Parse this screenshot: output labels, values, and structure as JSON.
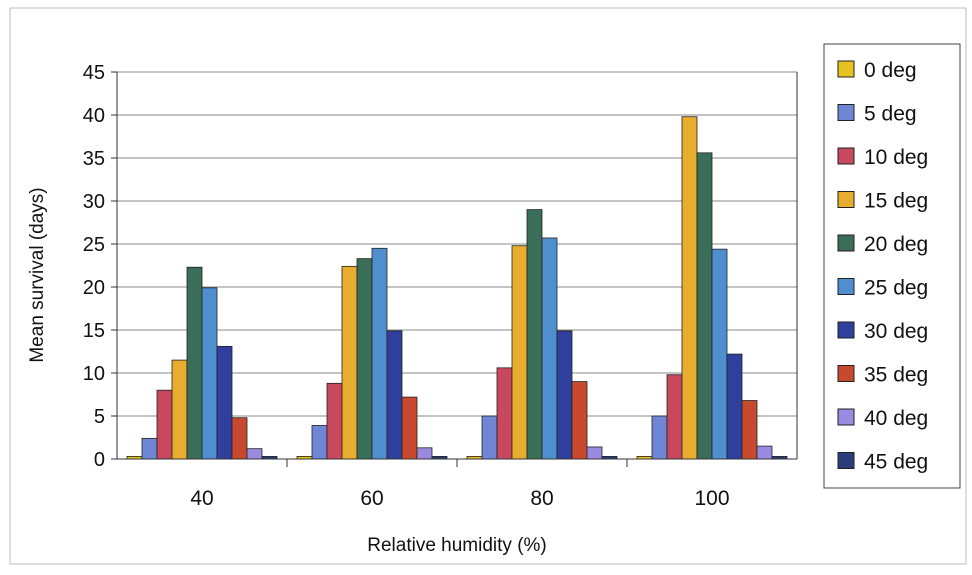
{
  "chart_data": {
    "type": "bar",
    "title": "",
    "xlabel": "Relative humidity (%)",
    "ylabel": "Mean survival (days)",
    "categories": [
      "40",
      "60",
      "80",
      "100"
    ],
    "ylim": [
      0,
      45
    ],
    "yticks": [
      "0",
      "5",
      "10",
      "15",
      "20",
      "25",
      "30",
      "35",
      "40",
      "45"
    ],
    "grid": true,
    "legend_position": "right",
    "series": [
      {
        "name": "0 deg",
        "color": "#e8c21e",
        "values": [
          0.3,
          0.3,
          0.3,
          0.3
        ]
      },
      {
        "name": "5 deg",
        "color": "#6f86d4",
        "values": [
          2.4,
          3.9,
          5.0,
          5.0
        ]
      },
      {
        "name": "10 deg",
        "color": "#c8485e",
        "values": [
          8.0,
          8.8,
          10.6,
          9.8
        ]
      },
      {
        "name": "15 deg",
        "color": "#e8ac2e",
        "values": [
          11.5,
          22.4,
          24.8,
          39.8
        ]
      },
      {
        "name": "20 deg",
        "color": "#3b6e58",
        "values": [
          22.3,
          23.3,
          29.0,
          35.6
        ]
      },
      {
        "name": "25 deg",
        "color": "#4f8fd0",
        "values": [
          19.9,
          24.5,
          25.7,
          24.4
        ]
      },
      {
        "name": "30 deg",
        "color": "#2e3f9e",
        "values": [
          13.1,
          14.9,
          14.9,
          12.2
        ]
      },
      {
        "name": "35 deg",
        "color": "#c84a2e",
        "values": [
          4.8,
          7.2,
          9.0,
          6.8
        ]
      },
      {
        "name": "40 deg",
        "color": "#9a8ae0",
        "values": [
          1.2,
          1.3,
          1.4,
          1.5
        ]
      },
      {
        "name": "45 deg",
        "color": "#2a3f7a",
        "values": [
          0.3,
          0.3,
          0.3,
          0.3
        ]
      }
    ]
  }
}
